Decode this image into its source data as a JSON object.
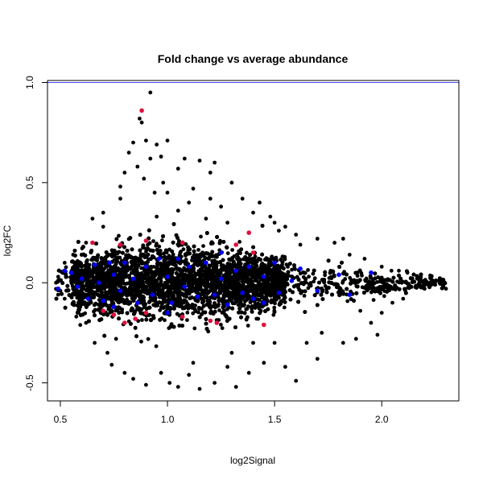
{
  "chart_data": {
    "type": "scatter",
    "title": "Fold change vs average abundance",
    "xlabel": "log2Signal",
    "ylabel": "log2FC",
    "xlim": [
      0.44,
      2.36
    ],
    "ylim": [
      -0.59,
      1.01
    ],
    "x_ticks": [
      0.5,
      1.0,
      1.5,
      2.0
    ],
    "x_tick_labels": [
      "0.5",
      "1.0",
      "1.5",
      "2.0"
    ],
    "y_ticks": [
      -0.5,
      0.0,
      0.5,
      1.0
    ],
    "y_tick_labels": [
      "-0.5",
      "0.0",
      "0.5",
      "1.0"
    ],
    "grid": false,
    "reference_line": {
      "y": 1.0,
      "color": "#4a4aff"
    },
    "colors": {
      "default": "#000000",
      "highlight_blue": "#0000ff",
      "highlight_red": "#e0103c"
    },
    "series": [
      {
        "color": "#000000",
        "points": [
          [
            0.92,
            0.95
          ],
          [
            0.87,
            0.82
          ],
          [
            0.88,
            0.8
          ],
          [
            0.84,
            0.7
          ],
          [
            0.9,
            0.71
          ],
          [
            0.95,
            0.69
          ],
          [
            1.0,
            0.71
          ],
          [
            0.82,
            0.65
          ],
          [
            0.97,
            0.63
          ],
          [
            0.92,
            0.62
          ],
          [
            1.08,
            0.62
          ],
          [
            1.15,
            0.61
          ],
          [
            1.22,
            0.6
          ],
          [
            1.2,
            0.55
          ],
          [
            0.86,
            0.58
          ],
          [
            0.8,
            0.55
          ],
          [
            1.05,
            0.57
          ],
          [
            0.89,
            0.52
          ],
          [
            1.3,
            0.5
          ],
          [
            0.78,
            0.48
          ],
          [
            1.12,
            0.47
          ],
          [
            0.94,
            0.45
          ],
          [
            1.35,
            0.42
          ],
          [
            1.43,
            0.4
          ],
          [
            1.25,
            0.38
          ],
          [
            1.4,
            0.35
          ],
          [
            0.7,
            0.35
          ],
          [
            1.05,
            0.36
          ],
          [
            0.95,
            0.33
          ],
          [
            1.5,
            0.3
          ],
          [
            1.55,
            0.28
          ],
          [
            1.52,
            0.26
          ],
          [
            1.6,
            0.24
          ],
          [
            1.7,
            0.22
          ],
          [
            1.78,
            0.2
          ],
          [
            1.82,
            0.22
          ],
          [
            0.65,
            0.32
          ],
          [
            1.18,
            0.32
          ],
          [
            1.48,
            0.33
          ],
          [
            1.62,
            0.19
          ],
          [
            0.84,
            -0.48
          ],
          [
            1.01,
            -0.5
          ],
          [
            1.1,
            -0.46
          ],
          [
            0.9,
            -0.51
          ],
          [
            0.97,
            -0.45
          ],
          [
            1.05,
            -0.52
          ],
          [
            1.15,
            -0.53
          ],
          [
            1.22,
            -0.5
          ],
          [
            1.32,
            -0.52
          ],
          [
            1.38,
            -0.45
          ],
          [
            1.6,
            -0.49
          ],
          [
            0.74,
            -0.41
          ],
          [
            0.8,
            -0.45
          ],
          [
            1.28,
            -0.42
          ],
          [
            1.45,
            -0.4
          ],
          [
            1.55,
            -0.42
          ],
          [
            1.7,
            -0.38
          ],
          [
            1.82,
            -0.3
          ],
          [
            1.88,
            -0.28
          ],
          [
            1.98,
            -0.26
          ],
          [
            2.0,
            -0.15
          ],
          [
            1.9,
            -0.14
          ],
          [
            2.1,
            -0.08
          ],
          [
            2.2,
            -0.03
          ],
          [
            2.25,
            -0.01
          ],
          [
            2.3,
            -0.03
          ],
          [
            2.27,
            0.0
          ],
          [
            2.17,
            0.02
          ],
          [
            2.05,
            -0.1
          ],
          [
            1.95,
            -0.2
          ],
          [
            0.49,
            0.03
          ],
          [
            0.5,
            -0.04
          ],
          [
            0.48,
            0.0
          ],
          [
            0.52,
            0.1
          ],
          [
            0.52,
            -0.08
          ],
          [
            0.56,
            0.14
          ],
          [
            0.58,
            -0.15
          ],
          [
            0.62,
            0.2
          ],
          [
            0.62,
            -0.2
          ],
          [
            0.66,
            -0.3
          ],
          [
            0.72,
            -0.35
          ],
          [
            0.78,
            0.42
          ],
          [
            0.7,
            0.28
          ],
          [
            0.76,
            -0.28
          ],
          [
            1.0,
            0.45
          ],
          [
            1.1,
            0.4
          ],
          [
            0.98,
            0.5
          ],
          [
            1.2,
            0.42
          ],
          [
            1.28,
            0.3
          ],
          [
            1.12,
            -0.4
          ],
          [
            1.3,
            -0.35
          ],
          [
            1.4,
            -0.3
          ],
          [
            1.5,
            -0.3
          ],
          [
            1.65,
            -0.3
          ],
          [
            1.72,
            -0.25
          ],
          [
            2.0,
            0.08
          ],
          [
            2.08,
            0.06
          ],
          [
            2.12,
            0.05
          ],
          [
            1.92,
            0.12
          ],
          [
            1.85,
            0.14
          ]
        ]
      },
      {
        "color": "#0000ff",
        "points": [
          [
            0.49,
            -0.03
          ],
          [
            0.52,
            0.06
          ],
          [
            0.55,
            0.05
          ],
          [
            0.58,
            -0.02
          ],
          [
            0.6,
            0.02
          ],
          [
            0.63,
            -0.08
          ],
          [
            0.66,
            0.09
          ],
          [
            0.68,
            0.0
          ],
          [
            0.7,
            -0.09
          ],
          [
            0.73,
            0.1
          ],
          [
            0.75,
            0.04
          ],
          [
            0.78,
            -0.04
          ],
          [
            0.8,
            0.1
          ],
          [
            0.84,
            0.02
          ],
          [
            0.86,
            -0.1
          ],
          [
            0.9,
            0.08
          ],
          [
            0.93,
            -0.06
          ],
          [
            0.96,
            0.12
          ],
          [
            1.0,
            0.03
          ],
          [
            1.02,
            -0.1
          ],
          [
            1.05,
            0.12
          ],
          [
            1.08,
            -0.02
          ],
          [
            1.1,
            0.08
          ],
          [
            1.14,
            -0.07
          ],
          [
            1.18,
            0.1
          ],
          [
            1.22,
            -0.06
          ],
          [
            1.25,
            0.02
          ],
          [
            1.28,
            -0.11
          ],
          [
            1.32,
            0.06
          ],
          [
            1.35,
            -0.05
          ],
          [
            1.38,
            0.08
          ],
          [
            1.4,
            -0.08
          ],
          [
            1.45,
            0.03
          ],
          [
            1.5,
            0.1
          ],
          [
            1.52,
            -0.05
          ],
          [
            1.58,
            0.01
          ],
          [
            1.62,
            0.07
          ],
          [
            1.7,
            -0.04
          ],
          [
            1.8,
            0.04
          ],
          [
            1.85,
            -0.06
          ],
          [
            1.95,
            0.05
          ],
          [
            1.0,
            -0.15
          ],
          [
            0.75,
            -0.12
          ],
          [
            1.25,
            0.15
          ],
          [
            1.45,
            -0.1
          ]
        ]
      },
      {
        "color": "#e0103c",
        "points": [
          [
            0.88,
            0.86
          ],
          [
            0.65,
            0.2
          ],
          [
            0.78,
            0.19
          ],
          [
            0.9,
            0.21
          ],
          [
            1.07,
            0.2
          ],
          [
            1.32,
            0.19
          ],
          [
            1.38,
            0.25
          ],
          [
            1.4,
            0.15
          ],
          [
            0.75,
            -0.16
          ],
          [
            0.8,
            -0.2
          ],
          [
            0.85,
            -0.18
          ],
          [
            0.9,
            -0.15
          ],
          [
            1.07,
            -0.17
          ],
          [
            1.2,
            -0.19
          ],
          [
            1.23,
            -0.2
          ],
          [
            1.45,
            -0.21
          ],
          [
            0.7,
            -0.14
          ]
        ]
      }
    ],
    "dense_cloud": {
      "color": "#000000",
      "count": 9000,
      "x_range": [
        0.48,
        2.3
      ],
      "center_y": 0.0,
      "spread_at_x": [
        [
          0.5,
          0.12
        ],
        [
          0.8,
          0.17
        ],
        [
          1.0,
          0.17
        ],
        [
          1.3,
          0.14
        ],
        [
          1.6,
          0.1
        ],
        [
          2.0,
          0.05
        ],
        [
          2.3,
          0.02
        ]
      ]
    }
  }
}
